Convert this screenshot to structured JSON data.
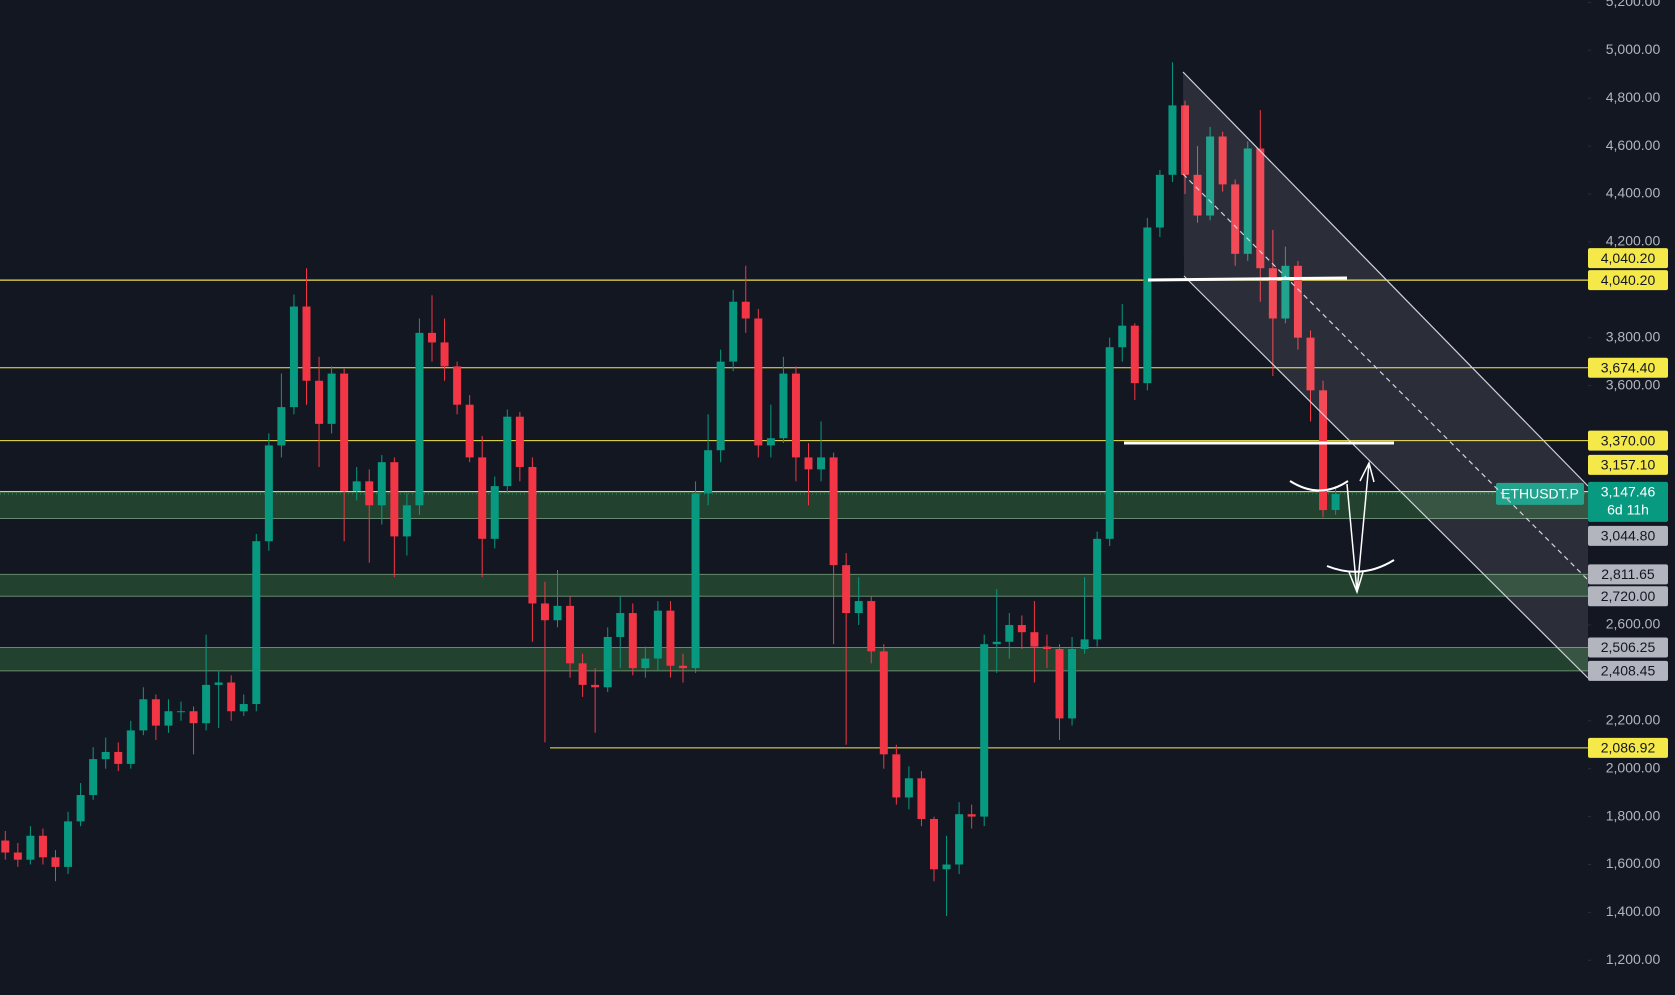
{
  "chart_data": {
    "type": "candlestick",
    "symbol": "ETHUSDT.P",
    "countdown": "6d 11h",
    "last_price": {
      "value": 3147.46,
      "label": "3,147.46"
    },
    "up_color": "#089981",
    "down_color": "#f23645",
    "ylim": [
      1055,
      5210
    ],
    "yticks": [
      {
        "value": 5200,
        "label": "5,200.00"
      },
      {
        "value": 5000,
        "label": "5,000.00"
      },
      {
        "value": 4800,
        "label": "4,800.00"
      },
      {
        "value": 4600,
        "label": "4,600.00"
      },
      {
        "value": 4400,
        "label": "4,400.00"
      },
      {
        "value": 4200,
        "label": "4,200.00"
      },
      {
        "value": 3800,
        "label": "3,800.00"
      },
      {
        "value": 3600,
        "label": "3,600.00"
      },
      {
        "value": 2600,
        "label": "2,600.00"
      },
      {
        "value": 2200,
        "label": "2,200.00"
      },
      {
        "value": 2000,
        "label": "2,000.00"
      },
      {
        "value": 1800,
        "label": "1,800.00"
      },
      {
        "value": 1600,
        "label": "1,600.00"
      },
      {
        "value": 1400,
        "label": "1,400.00"
      },
      {
        "value": 1200,
        "label": "1,200.00"
      }
    ],
    "levels": [
      {
        "value": 4040.2,
        "label": "4,040.20"
      },
      {
        "value": 4040.2,
        "label": "4,040.20"
      },
      {
        "value": 3674.4,
        "label": "3,674.40"
      },
      {
        "value": 3370,
        "label": "3,370.00"
      },
      {
        "value": 3157.1,
        "label": "3,157.10"
      },
      {
        "value": 2086.92,
        "label": "2,086.92"
      }
    ],
    "level_color": "#f5e94a",
    "zones": [
      {
        "high": 3157.1,
        "low": {
          "value": 3044.8,
          "label": "3,044.80"
        }
      },
      {
        "high": {
          "value": 2811.65,
          "label": "2,811.65"
        },
        "low": {
          "value": 2720,
          "label": "2,720.00"
        }
      },
      {
        "high": {
          "value": 2506.25,
          "label": "2,506.25"
        },
        "low": {
          "value": 2408.45,
          "label": "2,408.45"
        }
      }
    ],
    "open": [
      1700,
      1650,
      1620,
      1720,
      1630,
      1590,
      1780,
      1890,
      2040,
      2070,
      2020,
      2160,
      2290,
      2180,
      2240,
      2240,
      2190,
      2350,
      2360,
      2240,
      2270,
      2950,
      3350,
      3510,
      3930,
      3620,
      3440,
      3650,
      3160,
      3200,
      3100,
      3280,
      2970,
      3100,
      3820,
      3780,
      3680,
      3520,
      3300,
      2960,
      3180,
      3470,
      3260,
      2690,
      2620,
      2680,
      2440,
      2350,
      2340,
      2550,
      2650,
      2420,
      2460,
      2660,
      2430,
      2420,
      3150,
      3330,
      3700,
      3950,
      3880,
      3350,
      3380,
      3650,
      3300,
      3250,
      3300,
      2850,
      2650,
      2700,
      2490,
      2060,
      1880,
      1960,
      1790,
      1580,
      1600,
      1810,
      1800,
      2520,
      2530,
      2600,
      2570,
      2510,
      2500,
      2210,
      2500,
      2540,
      2960,
      3760,
      3850,
      3610,
      4260,
      4480,
      4770,
      4480,
      4310,
      4640,
      4440,
      4150,
      4590,
      4090,
      3880,
      4100,
      3800,
      3580,
      3080
    ],
    "high": [
      1740,
      1690,
      1760,
      1750,
      1660,
      1820,
      1940,
      2090,
      2130,
      2110,
      2200,
      2340,
      2310,
      2290,
      2280,
      2260,
      2560,
      2410,
      2390,
      2310,
      2980,
      3400,
      3650,
      3980,
      4090,
      3720,
      3680,
      3670,
      3260,
      3250,
      3310,
      3300,
      3150,
      3880,
      3977,
      3880,
      3700,
      3560,
      3390,
      3220,
      3500,
      3490,
      3300,
      2780,
      2830,
      2720,
      2480,
      2420,
      2590,
      2720,
      2690,
      2510,
      2700,
      2700,
      2480,
      3200,
      3480,
      3750,
      4000,
      4100,
      3920,
      3520,
      3720,
      3680,
      3360,
      3450,
      3320,
      2900,
      2800,
      2720,
      2520,
      2100,
      2010,
      1990,
      1800,
      1720,
      1860,
      1850,
      2560,
      2750,
      2650,
      2640,
      2700,
      2560,
      2520,
      2550,
      2800,
      2990,
      3800,
      3940,
      3860,
      4300,
      4500,
      4950,
      4790,
      4600,
      4680,
      4660,
      4460,
      4620,
      4750,
      4250,
      4180,
      4120,
      3830,
      3620,
      3180
    ],
    "low": [
      1620,
      1590,
      1600,
      1600,
      1530,
      1560,
      1760,
      1870,
      2000,
      1990,
      2000,
      2140,
      2120,
      2150,
      2200,
      2060,
      2160,
      2170,
      2200,
      2220,
      2240,
      2910,
      3300,
      3480,
      3520,
      3260,
      3400,
      2950,
      3120,
      2860,
      3020,
      2800,
      2890,
      3060,
      3700,
      3620,
      3480,
      3280,
      2800,
      2920,
      3150,
      3200,
      2530,
      2110,
      2590,
      2380,
      2300,
      2150,
      2320,
      2420,
      2390,
      2380,
      2410,
      2380,
      2360,
      2400,
      3100,
      3280,
      3660,
      3820,
      3300,
      3300,
      3360,
      3200,
      3100,
      3200,
      2520,
      2100,
      2600,
      2440,
      2000,
      1850,
      1830,
      1760,
      1530,
      1385,
      1560,
      1750,
      1760,
      2400,
      2460,
      2500,
      2360,
      2420,
      2120,
      2180,
      2480,
      2510,
      2930,
      3700,
      3540,
      3580,
      4220,
      4450,
      4400,
      4280,
      4290,
      4410,
      4100,
      4120,
      3950,
      3640,
      3860,
      3750,
      3450,
      3050,
      3060
    ],
    "close": [
      1650,
      1620,
      1720,
      1630,
      1590,
      1780,
      1890,
      2040,
      2070,
      2020,
      2160,
      2290,
      2180,
      2240,
      2240,
      2190,
      2350,
      2360,
      2240,
      2270,
      2950,
      3350,
      3510,
      3930,
      3620,
      3440,
      3650,
      3160,
      3200,
      3100,
      3280,
      2970,
      3100,
      3820,
      3780,
      3680,
      3520,
      3300,
      2960,
      3180,
      3470,
      3260,
      2690,
      2620,
      2680,
      2440,
      2350,
      2340,
      2550,
      2650,
      2420,
      2460,
      2660,
      2430,
      2420,
      3150,
      3330,
      3700,
      3950,
      3880,
      3350,
      3380,
      3650,
      3300,
      3250,
      3300,
      2850,
      2650,
      2700,
      2490,
      2060,
      1880,
      1960,
      1790,
      1580,
      1600,
      1810,
      1800,
      2520,
      2530,
      2600,
      2570,
      2510,
      2500,
      2210,
      2500,
      2540,
      2960,
      3760,
      3850,
      3610,
      4260,
      4480,
      4770,
      4480,
      4310,
      4640,
      4440,
      4150,
      4590,
      4090,
      3880,
      4100,
      3800,
      3580,
      3080,
      3147.46
    ]
  }
}
